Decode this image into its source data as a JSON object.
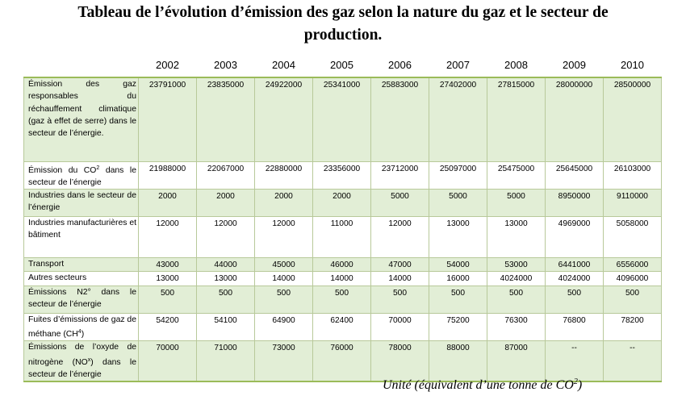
{
  "title": {
    "line1": "Tableau de l’évolution d’émission des gaz selon la nature du gaz et le secteur de",
    "line2": "production."
  },
  "table": {
    "years": [
      "2002",
      "2003",
      "2004",
      "2005",
      "2006",
      "2007",
      "2008",
      "2009",
      "2010"
    ],
    "rows": [
      {
        "label": "Émission des gaz responsables du réchauffement climatique (gaz à effet de serre) dans le secteur de l’énergie.",
        "values": [
          "23791000",
          "23835000",
          "24922000",
          "25341000",
          "25883000",
          "27402000",
          "27815000",
          "28000000",
          "28500000"
        ]
      },
      {
        "label_pre": "Émission du CO",
        "label_sup": "2",
        "label_post": " dans le secteur de l’énergie",
        "values": [
          "21988000",
          "22067000",
          "22880000",
          "23356000",
          "23712000",
          "25097000",
          "25475000",
          "25645000",
          "26103000"
        ]
      },
      {
        "label": "Industries dans le secteur de l’énergie",
        "values": [
          "2000",
          "2000",
          "2000",
          "2000",
          "5000",
          "5000",
          "5000",
          "8950000",
          "9110000"
        ]
      },
      {
        "label": "Industries manufacturières et bâtiment",
        "values": [
          "12000",
          "12000",
          "12000",
          "11000",
          "12000",
          "13000",
          "13000",
          "4969000",
          "5058000"
        ]
      },
      {
        "label": "Transport",
        "values": [
          "43000",
          "44000",
          "45000",
          "46000",
          "47000",
          "54000",
          "53000",
          "6441000",
          "6556000"
        ]
      },
      {
        "label": "Autres secteurs",
        "values": [
          "13000",
          "13000",
          "14000",
          "14000",
          "14000",
          "16000",
          "4024000",
          "4024000",
          "4096000"
        ]
      },
      {
        "label": "Émissions N2° dans le secteur de l’énergie",
        "values": [
          "500",
          "500",
          "500",
          "500",
          "500",
          "500",
          "500",
          "500",
          "500"
        ]
      },
      {
        "label_pre": "Fuites d’émissions de gaz de méthane (CH",
        "label_sup": "4",
        "label_post": ")",
        "values": [
          "54200",
          "54100",
          "64900",
          "62400",
          "70000",
          "75200",
          "76300",
          "76800",
          "78200"
        ]
      },
      {
        "label_pre": "Émissions de l’oxyde de nitrogène (NO",
        "label_sup": "x",
        "label_post": ") dans le secteur de l’énergie",
        "values": [
          "70000",
          "71000",
          "73000",
          "76000",
          "78000",
          "88000",
          "87000",
          "--",
          "--"
        ]
      }
    ]
  },
  "unit": {
    "pre": "Unité (équivalent d’une tonne de CO",
    "sup": "2",
    "post": ")"
  }
}
